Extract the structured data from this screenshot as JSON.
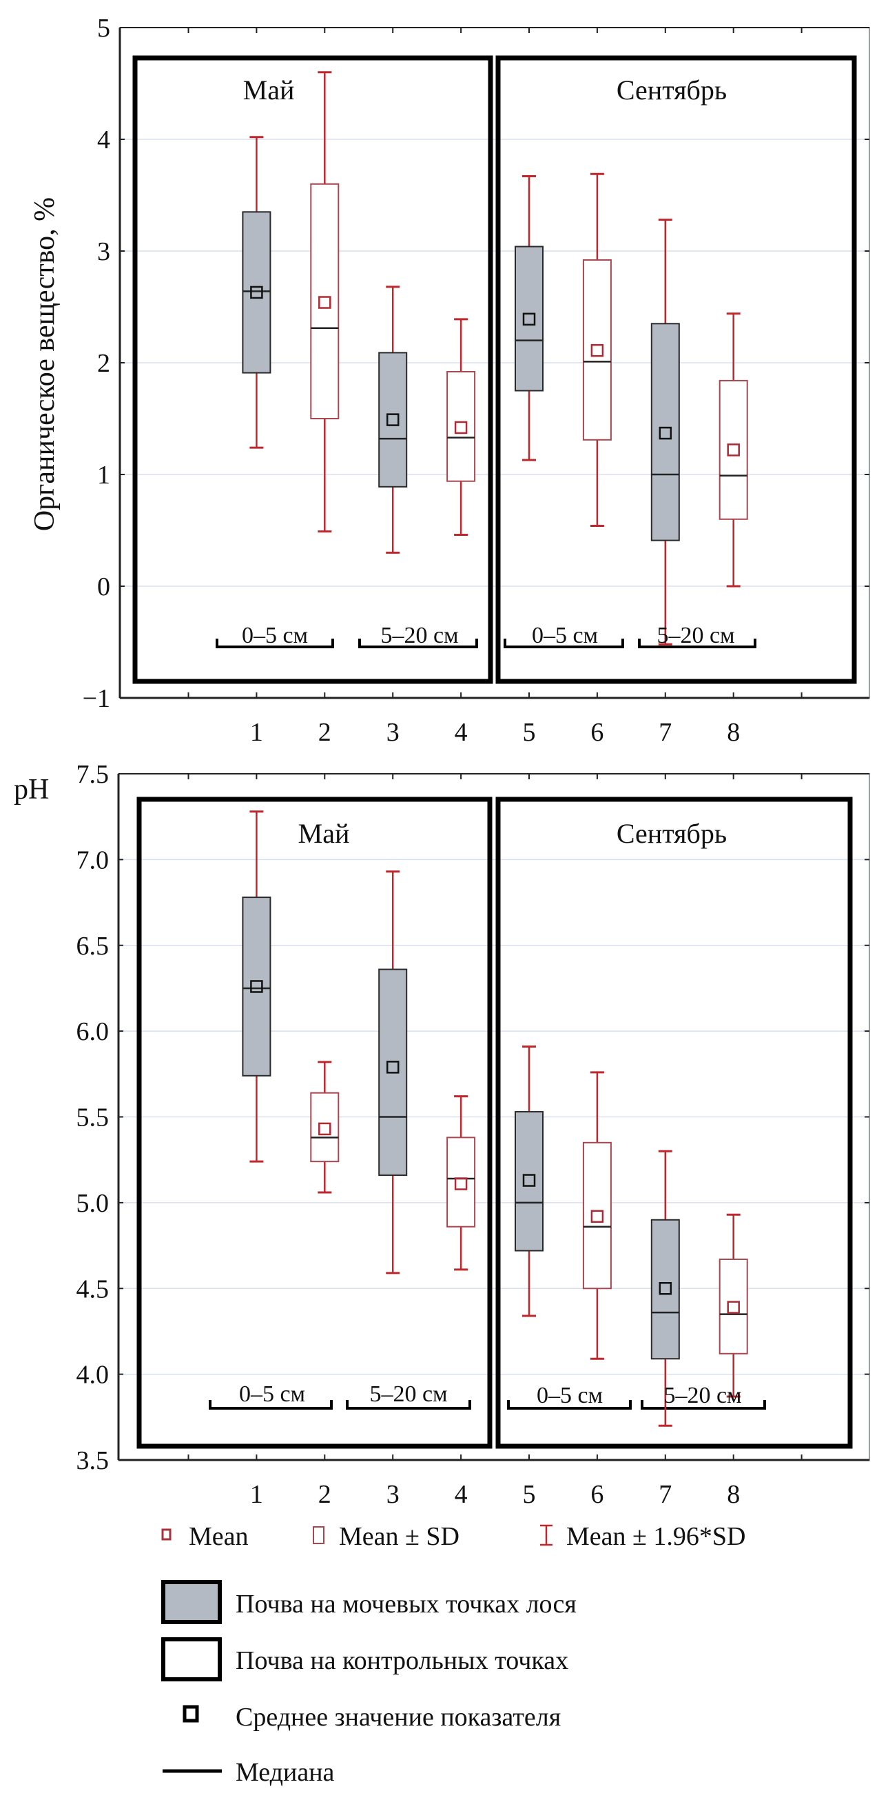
{
  "chart_data": [
    {
      "type": "boxplot",
      "ylabel": "Органическое вещество, %",
      "xlabel": "",
      "ylim": [
        -1,
        5
      ],
      "yticks": [
        "5",
        "4",
        "3",
        "2",
        "1",
        "0",
        "−1"
      ],
      "ytick_values": [
        5,
        4,
        3,
        2,
        1,
        0,
        -1
      ],
      "categories": [
        "1",
        "2",
        "3",
        "4",
        "5",
        "6",
        "7",
        "8"
      ],
      "grid": true,
      "groups": [
        {
          "title": "Май",
          "categories": [
            "1",
            "2",
            "3",
            "4"
          ]
        },
        {
          "title": "Сентябрь",
          "categories": [
            "5",
            "6",
            "7",
            "8"
          ]
        }
      ],
      "depth_labels": [
        "0–5 см",
        "5–20 см",
        "0–5 см",
        "5–20 см"
      ],
      "series": [
        {
          "category": "1",
          "type": "moose",
          "mean": 2.63,
          "median": 2.64,
          "box": [
            1.91,
            3.35
          ],
          "whiskers": [
            1.24,
            4.02
          ]
        },
        {
          "category": "2",
          "type": "control",
          "mean": 2.54,
          "median": 2.31,
          "box": [
            1.5,
            3.6
          ],
          "whiskers": [
            0.49,
            4.6
          ]
        },
        {
          "category": "3",
          "type": "moose",
          "mean": 1.49,
          "median": 1.32,
          "box": [
            0.89,
            2.09
          ],
          "whiskers": [
            0.3,
            2.68
          ]
        },
        {
          "category": "4",
          "type": "control",
          "mean": 1.42,
          "median": 1.33,
          "box": [
            0.94,
            1.92
          ],
          "whiskers": [
            0.46,
            2.39
          ]
        },
        {
          "category": "5",
          "type": "moose",
          "mean": 2.39,
          "median": 2.2,
          "box": [
            1.75,
            3.04
          ],
          "whiskers": [
            1.13,
            3.67
          ]
        },
        {
          "category": "6",
          "type": "control",
          "mean": 2.11,
          "median": 2.01,
          "box": [
            1.31,
            2.92
          ],
          "whiskers": [
            0.54,
            3.69
          ]
        },
        {
          "category": "7",
          "type": "moose",
          "mean": 1.37,
          "median": 1.0,
          "box": [
            0.41,
            2.35
          ],
          "whiskers": [
            -0.52,
            3.28
          ]
        },
        {
          "category": "8",
          "type": "control",
          "mean": 1.22,
          "median": 0.99,
          "box": [
            0.6,
            1.84
          ],
          "whiskers": [
            0.0,
            2.44
          ]
        }
      ]
    },
    {
      "type": "boxplot",
      "ylabel": "pH",
      "xlabel": "",
      "ylim": [
        3.5,
        7.5
      ],
      "yticks": [
        "7.5",
        "7.0",
        "6.5",
        "6.0",
        "5.5",
        "5.0",
        "4.5",
        "4.0",
        "3.5"
      ],
      "ytick_values": [
        7.5,
        7.0,
        6.5,
        6.0,
        5.5,
        5.0,
        4.5,
        4.0,
        3.5
      ],
      "categories": [
        "1",
        "2",
        "3",
        "4",
        "5",
        "6",
        "7",
        "8"
      ],
      "grid": true,
      "groups": [
        {
          "title": "Май",
          "categories": [
            "1",
            "2",
            "3",
            "4"
          ]
        },
        {
          "title": "Сентябрь",
          "categories": [
            "5",
            "6",
            "7",
            "8"
          ]
        }
      ],
      "depth_labels": [
        "0–5 см",
        "5–20 см",
        "0–5 см",
        "5–20 см"
      ],
      "series": [
        {
          "category": "1",
          "type": "moose",
          "mean": 6.26,
          "median": 6.25,
          "box": [
            5.74,
            6.78
          ],
          "whiskers": [
            5.24,
            7.28
          ]
        },
        {
          "category": "2",
          "type": "control",
          "mean": 5.43,
          "median": 5.38,
          "box": [
            5.24,
            5.64
          ],
          "whiskers": [
            5.06,
            5.82
          ]
        },
        {
          "category": "3",
          "type": "moose",
          "mean": 5.79,
          "median": 5.5,
          "box": [
            5.16,
            6.36
          ],
          "whiskers": [
            4.59,
            6.93
          ]
        },
        {
          "category": "4",
          "type": "control",
          "mean": 5.11,
          "median": 5.14,
          "box": [
            4.86,
            5.38
          ],
          "whiskers": [
            4.61,
            5.62
          ]
        },
        {
          "category": "5",
          "type": "moose",
          "mean": 5.13,
          "median": 5.0,
          "box": [
            4.72,
            5.53
          ],
          "whiskers": [
            4.34,
            5.91
          ]
        },
        {
          "category": "6",
          "type": "control",
          "mean": 4.92,
          "median": 4.86,
          "box": [
            4.5,
            5.35
          ],
          "whiskers": [
            4.09,
            5.76
          ]
        },
        {
          "category": "7",
          "type": "moose",
          "mean": 4.5,
          "median": 4.36,
          "box": [
            4.09,
            4.9
          ],
          "whiskers": [
            3.7,
            5.3
          ]
        },
        {
          "category": "8",
          "type": "control",
          "mean": 4.39,
          "median": 4.35,
          "box": [
            4.12,
            4.67
          ],
          "whiskers": [
            3.87,
            4.93
          ]
        }
      ]
    }
  ],
  "legend": {
    "stats": [
      {
        "icon": "mean-square-icon",
        "label": "Mean"
      },
      {
        "icon": "sd-box-icon",
        "label": "Mean ± SD"
      },
      {
        "icon": "whisker-icon",
        "label": "Mean ± 1.96*SD"
      }
    ],
    "items": [
      {
        "icon": "filled-box-icon",
        "label": "Почва на мочевых точках лося"
      },
      {
        "icon": "empty-box-icon",
        "label": "Почва на контрольных точках"
      },
      {
        "icon": "mean-marker-icon",
        "label": "Среднее значение показателя"
      },
      {
        "icon": "median-line-icon",
        "label": "Медиана"
      }
    ]
  },
  "colors": {
    "moose_fill": "#b4bac4",
    "box_stroke_dark": "#2a2a2a",
    "control_stroke": "#a8474f",
    "whisker": "#c0272d",
    "grid": "#d8dff0",
    "frame": "#000000"
  }
}
